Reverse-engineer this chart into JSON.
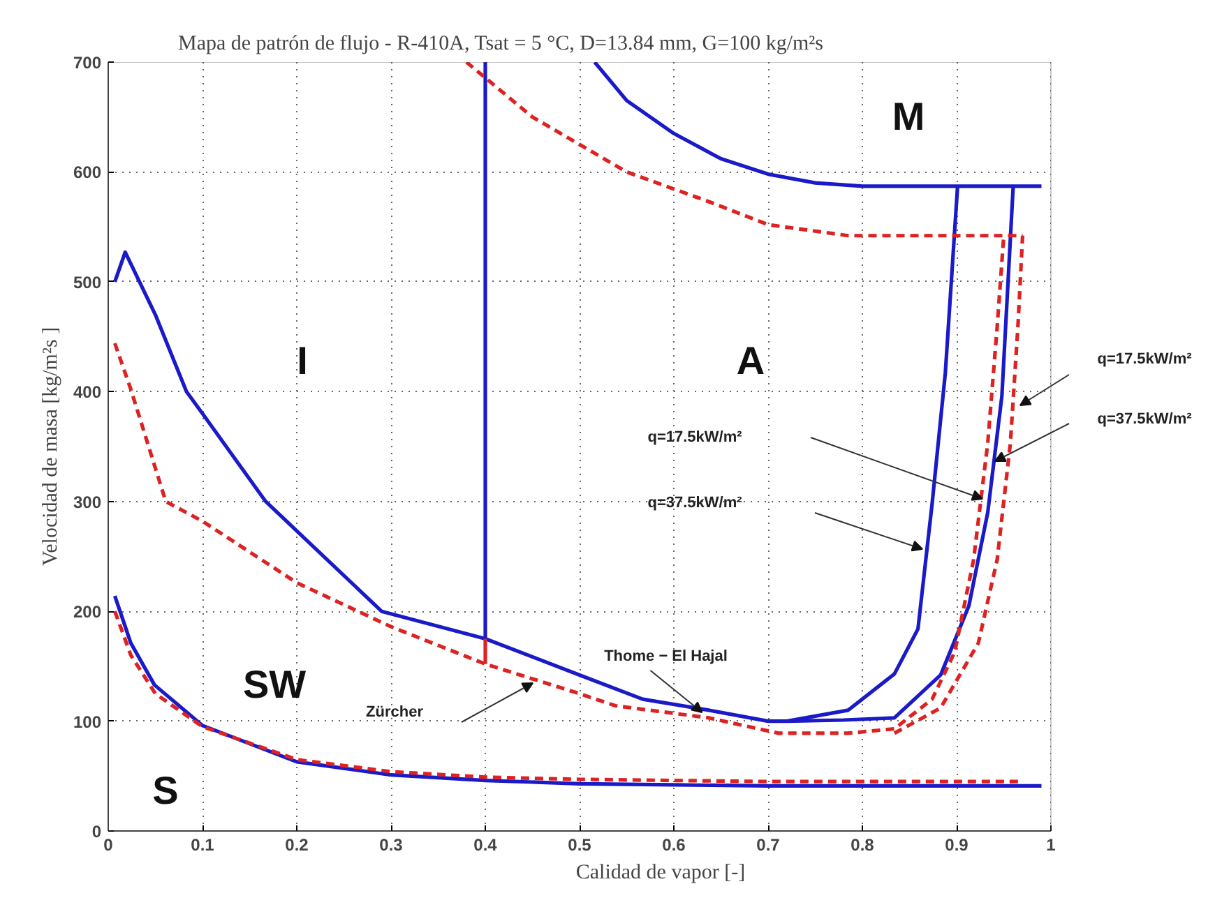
{
  "chart_data": {
    "type": "line",
    "title": "Mapa de patrón de flujo - R-410A, Tsat = 5 °C, D=13.84 mm, G=100 kg/m²s",
    "xlabel": "Calidad de vapor [-]",
    "ylabel": "Velocidad de masa [kg/m²s ]",
    "xlim": [
      0,
      1
    ],
    "ylim": [
      0,
      700
    ],
    "xticks": [
      0,
      0.1,
      0.2,
      0.3,
      0.4,
      0.5,
      0.6,
      0.7,
      0.8,
      0.9,
      1
    ],
    "yticks": [
      0,
      100,
      200,
      300,
      400,
      500,
      600,
      700
    ],
    "grid": true,
    "series": [
      {
        "color": "#1a1ac8",
        "line_style": "solid",
        "x": [
          0.007,
          0.024,
          0.049,
          0.1,
          0.2,
          0.3,
          0.4,
          0.5,
          0.6,
          0.7,
          0.8,
          0.9,
          0.99
        ],
        "values": [
          214,
          171,
          133,
          96,
          63,
          51,
          46,
          43,
          42,
          41,
          41,
          41,
          41
        ]
      },
      {
        "color": "#1a1ac8",
        "line_style": "solid",
        "x": [
          0.007,
          0.018,
          0.05,
          0.083,
          0.1,
          0.167,
          0.29,
          0.4,
          0.5,
          0.567,
          0.637,
          0.7,
          0.72,
          0.785,
          0.834,
          0.859,
          0.874,
          0.888,
          0.901
        ],
        "values": [
          500,
          527,
          470,
          400,
          380,
          300,
          200,
          175,
          142,
          120,
          110,
          100,
          100,
          110,
          143,
          184,
          298,
          417,
          587
        ]
      },
      {
        "color": "#1a1ac8",
        "line_style": "solid",
        "x": [
          0.72,
          0.78,
          0.834,
          0.883,
          0.913,
          0.933,
          0.948,
          0.96
        ],
        "values": [
          100,
          101,
          103,
          142,
          205,
          290,
          396,
          587
        ]
      },
      {
        "color": "#1a1ac8",
        "line_style": "solid",
        "x": [
          0.4,
          0.4
        ],
        "values": [
          175,
          700
        ]
      },
      {
        "color": "#1a1ac8",
        "line_style": "solid",
        "x": [
          0.516,
          0.55,
          0.6,
          0.65,
          0.7,
          0.75,
          0.8,
          0.99
        ],
        "values": [
          700,
          665,
          635,
          612,
          598,
          590,
          587,
          587
        ]
      },
      {
        "color": "#dd2222",
        "line_style": "dashed",
        "x": [
          0.007,
          0.024,
          0.05,
          0.1,
          0.2,
          0.3,
          0.4,
          0.5,
          0.6,
          0.7,
          0.8,
          0.9,
          0.97
        ],
        "values": [
          200,
          160,
          125,
          95,
          65,
          54,
          49,
          47,
          46,
          45,
          45,
          45,
          45
        ]
      },
      {
        "color": "#dd2222",
        "line_style": "dashed",
        "x": [
          0.007,
          0.024,
          0.061,
          0.1,
          0.2,
          0.3,
          0.4,
          0.5,
          0.538,
          0.637,
          0.711,
          0.785,
          0.834,
          0.874,
          0.898,
          0.918,
          0.933,
          0.943,
          0.95
        ],
        "values": [
          444,
          402,
          300,
          282,
          226,
          186,
          152,
          125,
          114,
          103,
          89,
          89,
          93,
          120,
          163,
          247,
          353,
          459,
          542
        ]
      },
      {
        "color": "#dd2222",
        "line_style": "dashed",
        "x": [
          0.834,
          0.883,
          0.923,
          0.943,
          0.957,
          0.965,
          0.97
        ],
        "values": [
          89,
          112,
          171,
          247,
          353,
          459,
          542
        ]
      },
      {
        "color": "#dd2222",
        "line_style": "solid",
        "x": [
          0.4,
          0.4
        ],
        "values": [
          152,
          175
        ]
      },
      {
        "color": "#dd2222",
        "line_style": "dashed",
        "x": [
          0.38,
          0.45,
          0.55,
          0.637,
          0.7,
          0.785,
          0.97
        ],
        "values": [
          700,
          650,
          600,
          573,
          552,
          542,
          542
        ]
      }
    ],
    "annotations": [
      {
        "text": "Thome − El Hajal",
        "x": 0.63,
        "y": 108
      },
      "Zürcher",
      "q=17.5kW/m²",
      "q=37.5kW/m²",
      "q=17.5kW/m²",
      "q=37.5kW/m²",
      "M",
      "I",
      "A",
      "SW",
      "S"
    ]
  }
}
